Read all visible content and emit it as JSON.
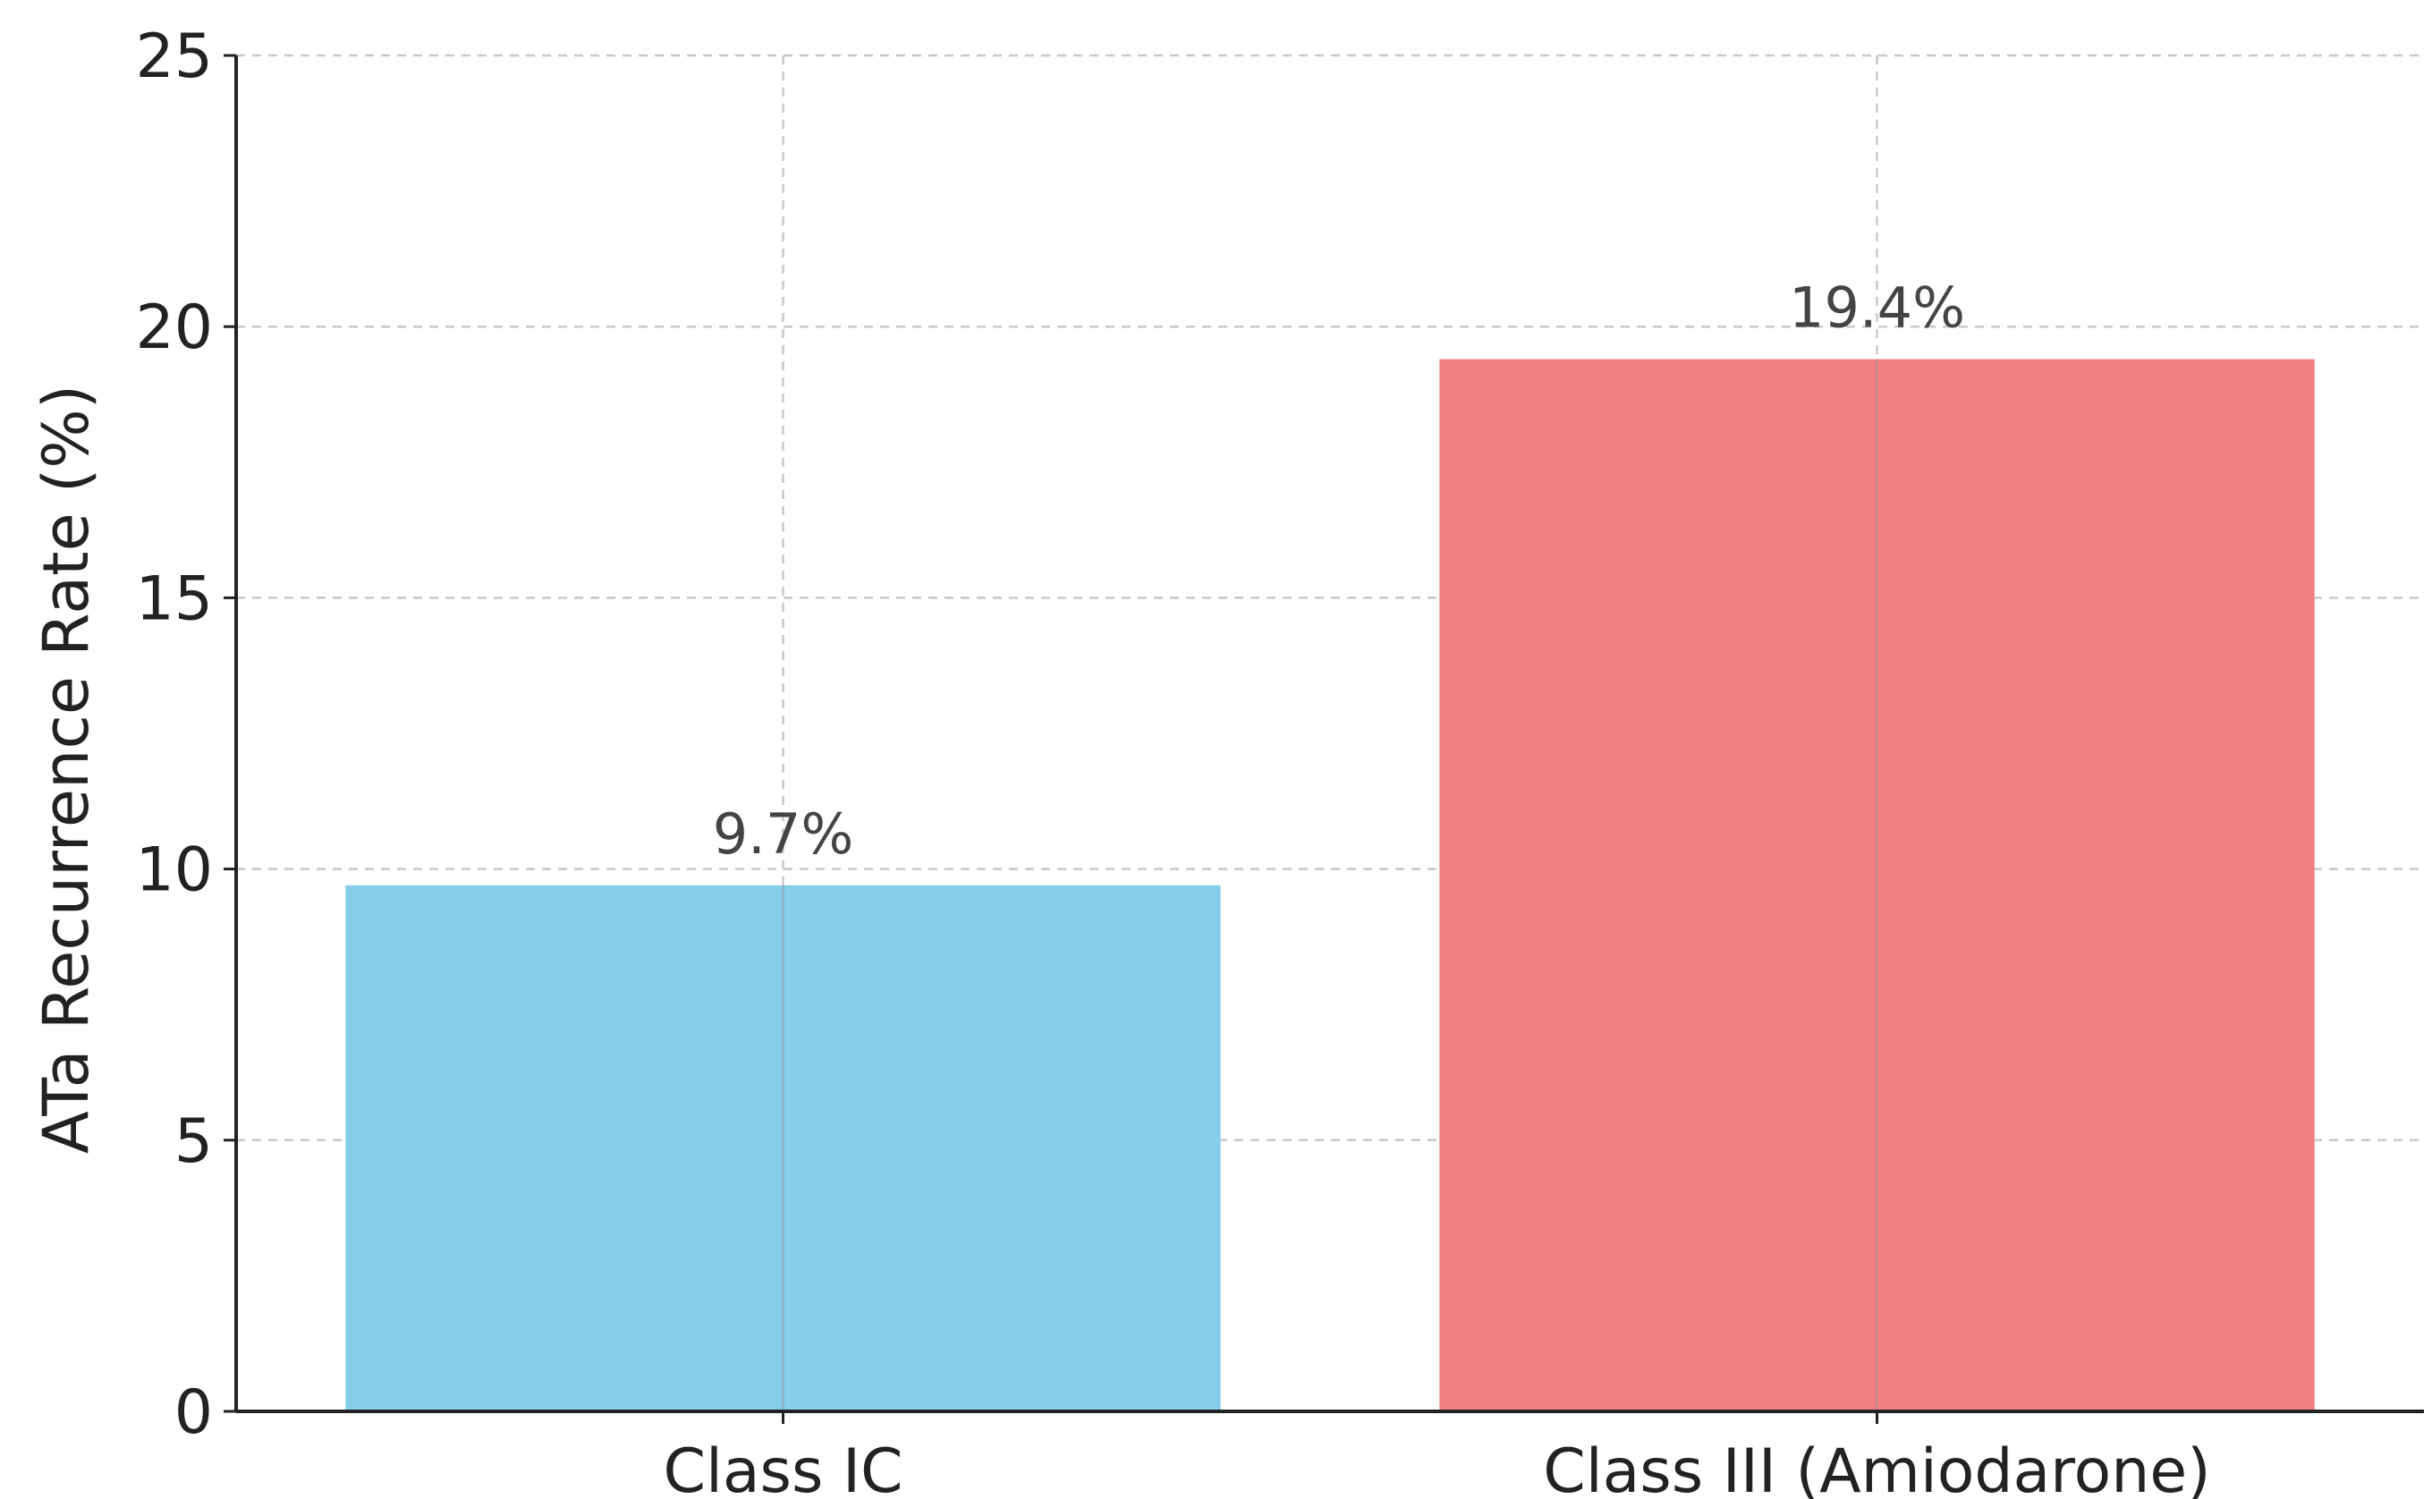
{
  "chart_data": {
    "type": "bar",
    "title": "",
    "xlabel": "",
    "ylabel": "ATa Recurrence Rate (%)",
    "categories": [
      "Class IC",
      "Class III (Amiodarone)"
    ],
    "values": [
      9.7,
      19.4
    ],
    "data_labels": [
      "9.7%",
      "19.4%"
    ],
    "colors": [
      "#87ceeb",
      "#f08080"
    ],
    "ylim": [
      0,
      25
    ],
    "yticks": [
      0,
      5,
      10,
      15,
      20,
      25
    ],
    "grid": true,
    "legend": "none"
  }
}
